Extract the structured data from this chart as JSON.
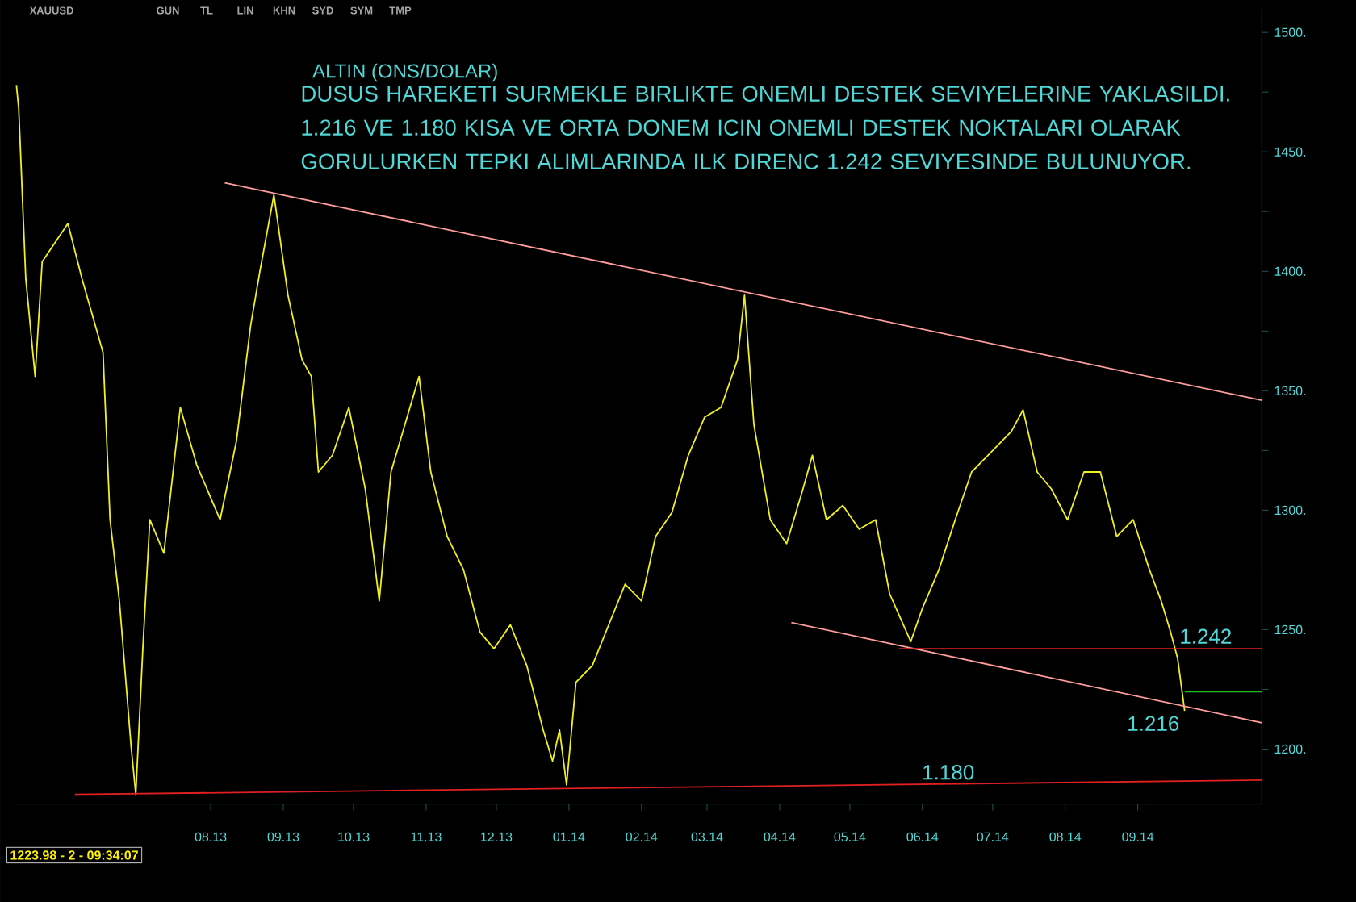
{
  "chart_data": {
    "type": "line",
    "title": "ALTIN (ONS/DOLAR)",
    "subtitle": "DUSUS HAREKETI SURMEKLE BIRLIKTE ONEMLI DESTEK SEVIYELERINE YAKLASILDI. 1.216 VE 1.180 KISA VE ORTA DONEM ICIN ONEMLI DESTEK NOKTALARI OLARAK GORULURKEN  TEPKI ALIMLARINDA ILK DIRENC 1.242 SEVIYESINDE BULUNUYOR.",
    "xlim": [
      "2013-05-09",
      "2014-10-24"
    ],
    "xticks": [
      {
        "value": "2013-08-01",
        "label": "08.13"
      },
      {
        "value": "2013-09-01",
        "label": "09.13"
      },
      {
        "value": "2013-10-01",
        "label": "10.13"
      },
      {
        "value": "2013-11-01",
        "label": "11.13"
      },
      {
        "value": "2013-12-01",
        "label": "12.13"
      },
      {
        "value": "2014-01-01",
        "label": "01.14"
      },
      {
        "value": "2014-02-01",
        "label": "02.14"
      },
      {
        "value": "2014-03-01",
        "label": "03.14"
      },
      {
        "value": "2014-04-01",
        "label": "04.14"
      },
      {
        "value": "2014-05-01",
        "label": "05.14"
      },
      {
        "value": "2014-06-01",
        "label": "06.14"
      },
      {
        "value": "2014-07-01",
        "label": "07.14"
      },
      {
        "value": "2014-08-01",
        "label": "08.14"
      },
      {
        "value": "2014-09-01",
        "label": "09.14"
      }
    ],
    "ylim": [
      1177,
      1510
    ],
    "yticks": [
      {
        "value": 1200,
        "label": "1200."
      },
      {
        "value": 1225,
        "label": null
      },
      {
        "value": 1250,
        "label": "1250."
      },
      {
        "value": 1275,
        "label": null
      },
      {
        "value": 1300,
        "label": "1300."
      },
      {
        "value": 1325,
        "label": null
      },
      {
        "value": 1350,
        "label": "1350."
      },
      {
        "value": 1375,
        "label": null
      },
      {
        "value": 1400,
        "label": "1400."
      },
      {
        "value": 1425,
        "label": null
      },
      {
        "value": 1450,
        "label": "1450."
      },
      {
        "value": 1475,
        "label": null
      },
      {
        "value": 1500,
        "label": "1500."
      }
    ],
    "series": [
      {
        "color": "#f0f020",
        "x": [
          "2013-05-10",
          "2013-05-11",
          "2013-05-14",
          "2013-05-18",
          "2013-05-21",
          "2013-06-01",
          "2013-06-07",
          "2013-06-16",
          "2013-06-19",
          "2013-06-23",
          "2013-06-28",
          "2013-06-30",
          "2013-07-03",
          "2013-07-06",
          "2013-07-12",
          "2013-07-19",
          "2013-07-26",
          "2013-08-05",
          "2013-08-12",
          "2013-08-18",
          "2013-08-22",
          "2013-08-28",
          "2013-09-03",
          "2013-09-09",
          "2013-09-13",
          "2013-09-16",
          "2013-09-22",
          "2013-09-29",
          "2013-10-06",
          "2013-10-12",
          "2013-10-17",
          "2013-10-23",
          "2013-10-29",
          "2013-11-03",
          "2013-11-10",
          "2013-11-17",
          "2013-11-24",
          "2013-11-30",
          "2013-12-07",
          "2013-12-14",
          "2013-12-21",
          "2013-12-25",
          "2013-12-28",
          "2013-12-31",
          "2014-01-04",
          "2014-01-11",
          "2014-01-18",
          "2014-01-25",
          "2014-02-01",
          "2014-02-07",
          "2014-02-14",
          "2014-02-21",
          "2014-02-28",
          "2014-03-07",
          "2014-03-14",
          "2014-03-17",
          "2014-03-21",
          "2014-03-28",
          "2014-04-04",
          "2014-04-11",
          "2014-04-15",
          "2014-04-21",
          "2014-04-28",
          "2014-05-05",
          "2014-05-12",
          "2014-05-18",
          "2014-05-27",
          "2014-06-01",
          "2014-06-08",
          "2014-06-15",
          "2014-06-22",
          "2014-06-29",
          "2014-07-09",
          "2014-07-14",
          "2014-07-20",
          "2014-07-26",
          "2014-08-02",
          "2014-08-09",
          "2014-08-16",
          "2014-08-23",
          "2014-08-30",
          "2014-09-06",
          "2014-09-11",
          "2014-09-15",
          "2014-09-18",
          "2014-09-21"
        ],
        "values": [
          1478,
          1468,
          1397,
          1356,
          1404,
          1420,
          1397,
          1366,
          1296,
          1262,
          1201,
          1181,
          1242,
          1296,
          1282,
          1343,
          1319,
          1296,
          1329,
          1377,
          1400,
          1432,
          1390,
          1363,
          1356,
          1316,
          1323,
          1343,
          1309,
          1262,
          1316,
          1336,
          1356,
          1316,
          1289,
          1275,
          1249,
          1242,
          1252,
          1235,
          1208,
          1195,
          1208,
          1185,
          1228,
          1235,
          1252,
          1269,
          1262,
          1289,
          1299,
          1323,
          1339,
          1343,
          1363,
          1390,
          1336,
          1296,
          1286,
          1309,
          1323,
          1296,
          1302,
          1292,
          1296,
          1265,
          1245,
          1259,
          1275,
          1296,
          1316,
          1323,
          1333,
          1342,
          1316,
          1309,
          1296,
          1316,
          1316,
          1289,
          1296,
          1275,
          1262,
          1249,
          1238,
          1216
        ]
      },
      {
        "type": "line",
        "color": "#ff9c9c",
        "x": [
          "2013-08-07",
          "2014-10-24"
        ],
        "values": [
          1437,
          1346
        ]
      },
      {
        "type": "line",
        "color": "#ff9c9c",
        "x": [
          "2014-04-06",
          "2014-10-24"
        ],
        "values": [
          1253,
          1211
        ]
      },
      {
        "type": "line",
        "color": "#e02020",
        "x": [
          "2014-05-22",
          "2014-10-24"
        ],
        "values": [
          1242,
          1242
        ]
      },
      {
        "type": "line",
        "color": "#20c020",
        "x": [
          "2014-09-21",
          "2014-10-24"
        ],
        "values": [
          1224,
          1224
        ]
      },
      {
        "type": "line",
        "color": "#e02020",
        "x": [
          "2013-06-04",
          "2014-10-24"
        ],
        "values": [
          1181,
          1187
        ]
      }
    ],
    "annotations": [
      "XAUUSD",
      "GUN",
      "TL",
      "LIN",
      "KHN",
      "SYD",
      "SYM",
      "TMP",
      "1223.98 - 2 - 09:34:07",
      {
        "text": "1.242",
        "x": "2014-09-30",
        "y": 1242
      },
      {
        "text": "1.216",
        "x": "2014-09-21",
        "y": 1216
      },
      {
        "text": "1.180",
        "x": "2014-06-12",
        "y": 1185
      }
    ]
  }
}
